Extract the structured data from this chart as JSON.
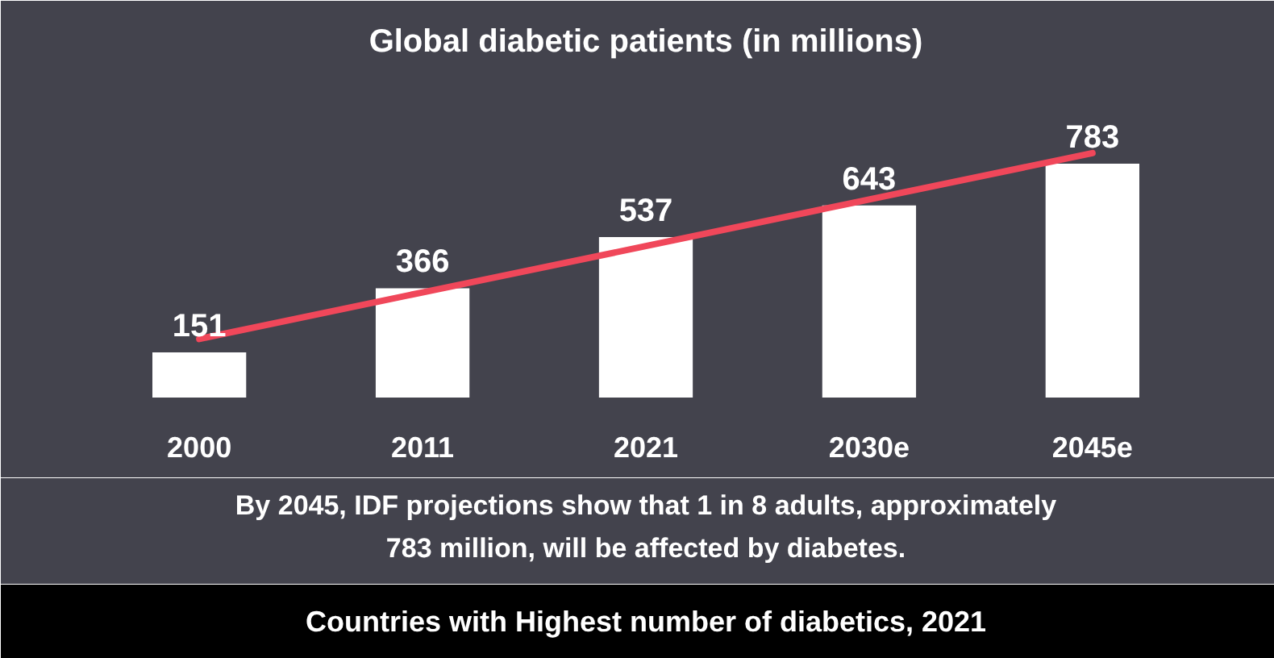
{
  "chart_data": {
    "type": "bar",
    "title": "Global diabetic patients (in millions)",
    "categories": [
      "2000",
      "2011",
      "2021",
      "2030e",
      "2045e"
    ],
    "series": [
      {
        "color": "#ffffff",
        "values": [
          151,
          366,
          537,
          643,
          783
        ],
        "value_labels": [
          "151",
          "366",
          "537",
          "643",
          "783"
        ]
      },
      {
        "type": "line",
        "color": "#f0475a",
        "values": [
          196,
          352,
          507,
          663,
          818
        ]
      }
    ],
    "grid": false,
    "annotations": [
      "By 2045, IDF projections show that 1 in 8 adults, approximately",
      "783 million, will be affected by diabetes.",
      "Countries with Highest number of diabetics, 2021"
    ]
  }
}
